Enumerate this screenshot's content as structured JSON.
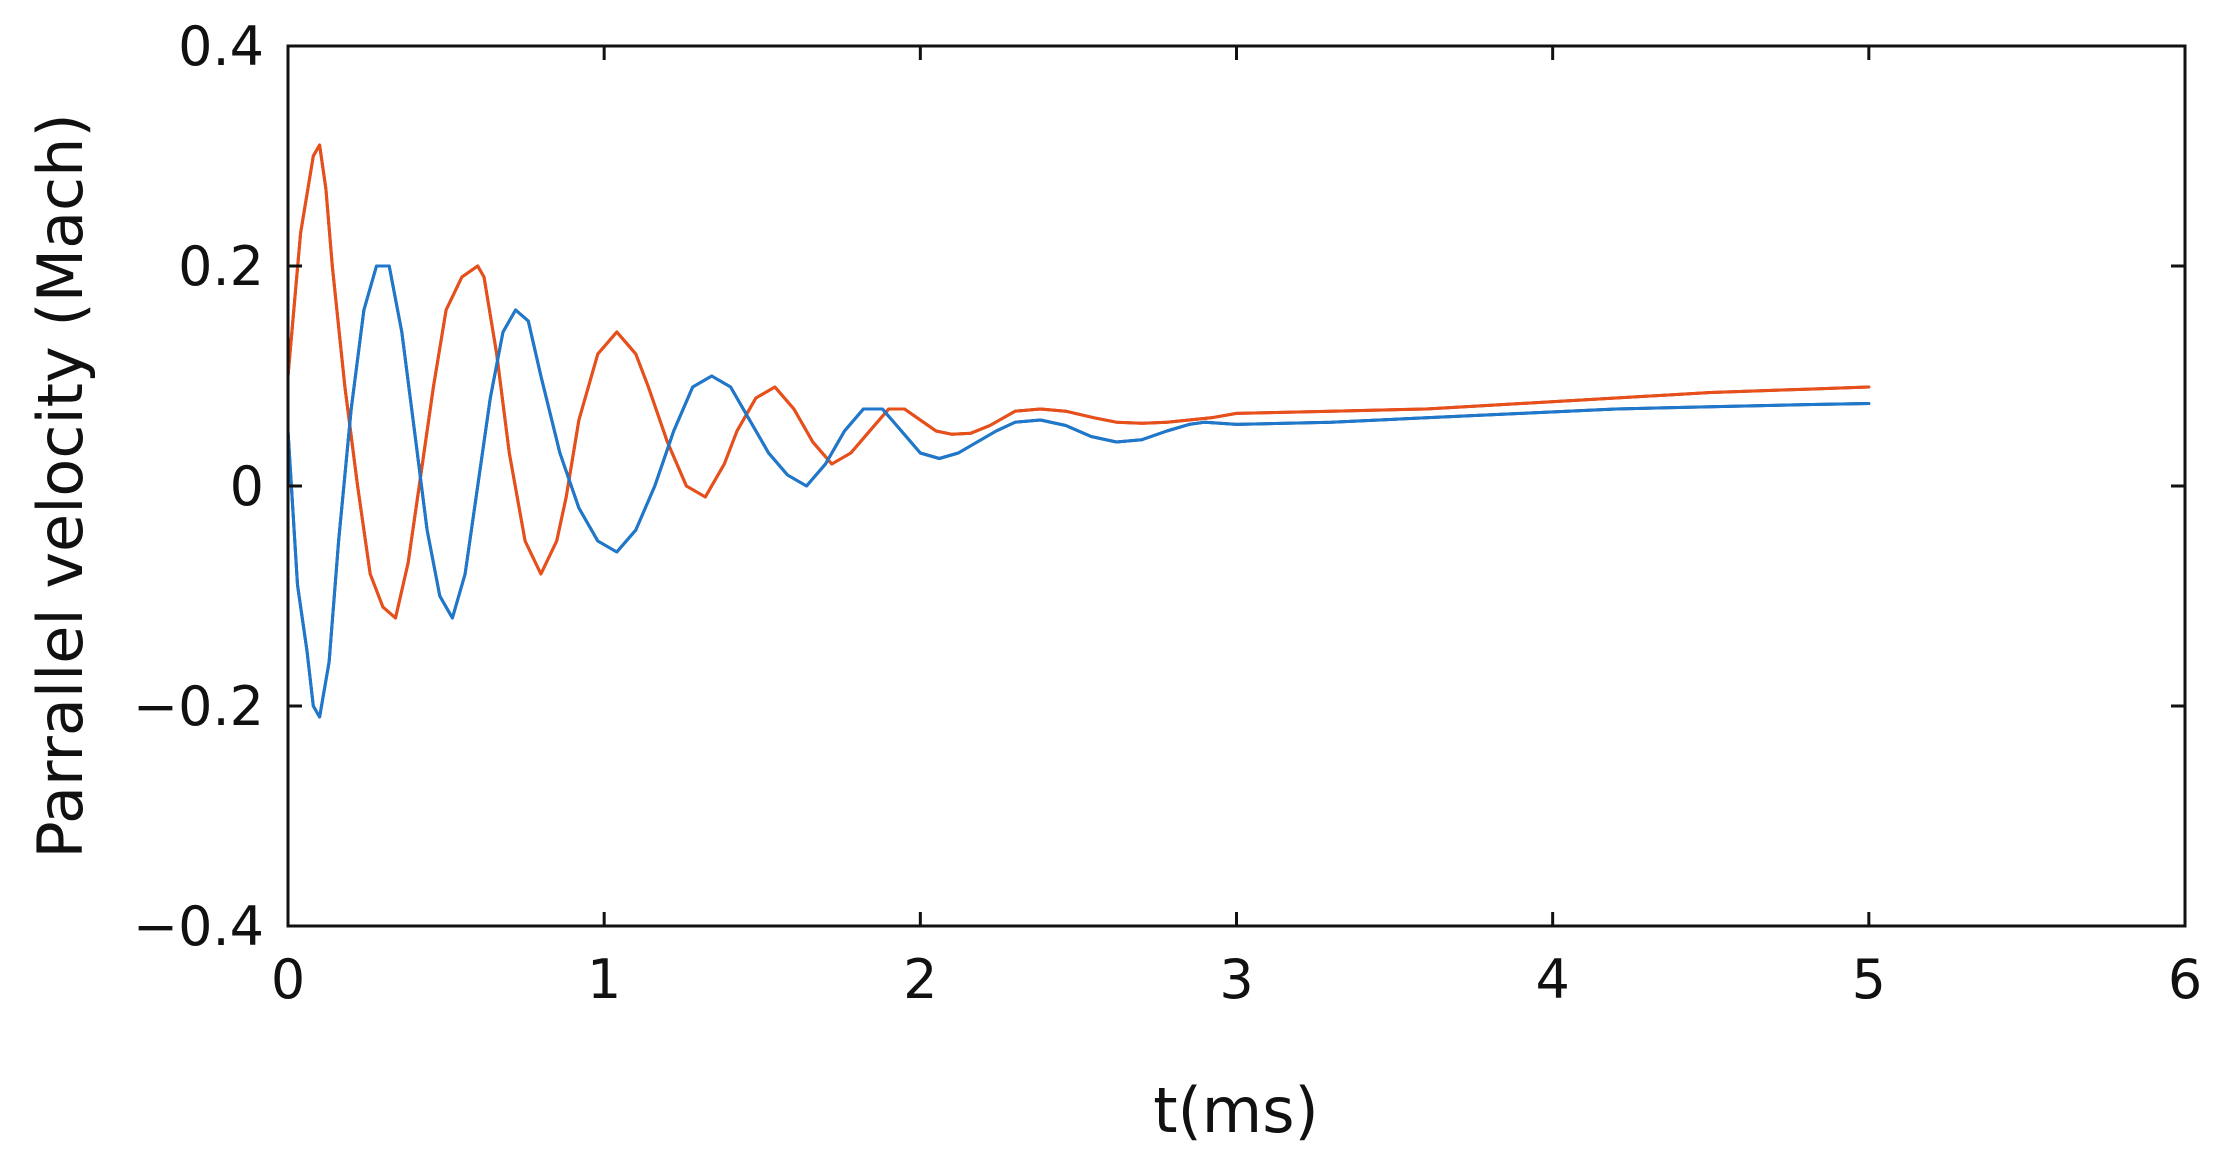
{
  "chart_data": {
    "type": "line",
    "title": "",
    "xlabel": "t(ms)",
    "ylabel": "Parrallel velocity (Mach)",
    "xlim": [
      0,
      6
    ],
    "ylim": [
      -0.4,
      0.4
    ],
    "xticks": [
      0,
      1,
      2,
      3,
      4,
      5,
      6
    ],
    "xtick_labels": [
      "0",
      "1",
      "2",
      "3",
      "4",
      "5",
      "6"
    ],
    "yticks": [
      -0.4,
      -0.2,
      0,
      0.2,
      0.4
    ],
    "ytick_labels": [
      "−0.4",
      "−0.2",
      "0",
      "0.2",
      "0.4"
    ],
    "grid": false,
    "legend": "none",
    "series": [
      {
        "color": "#e8501a",
        "outline": "#b01515",
        "x": [
          0,
          0.04,
          0.08,
          0.1,
          0.12,
          0.14,
          0.18,
          0.22,
          0.26,
          0.3,
          0.34,
          0.38,
          0.42,
          0.46,
          0.5,
          0.55,
          0.6,
          0.62,
          0.66,
          0.7,
          0.75,
          0.8,
          0.85,
          0.88,
          0.92,
          0.98,
          1.04,
          1.1,
          1.14,
          1.2,
          1.26,
          1.32,
          1.38,
          1.42,
          1.48,
          1.54,
          1.6,
          1.66,
          1.72,
          1.78,
          1.84,
          1.9,
          1.95,
          2.0,
          2.05,
          2.1,
          2.16,
          2.22,
          2.3,
          2.38,
          2.46,
          2.55,
          2.62,
          2.7,
          2.78,
          2.85,
          2.92,
          3.0,
          3.3,
          3.6,
          3.9,
          4.2,
          4.5,
          4.8,
          5.0
        ],
        "y": [
          0.1,
          0.23,
          0.3,
          0.31,
          0.27,
          0.2,
          0.09,
          0.0,
          -0.08,
          -0.11,
          -0.12,
          -0.07,
          0.01,
          0.09,
          0.16,
          0.19,
          0.2,
          0.19,
          0.12,
          0.03,
          -0.05,
          -0.08,
          -0.05,
          -0.01,
          0.06,
          0.12,
          0.14,
          0.12,
          0.09,
          0.04,
          0.0,
          -0.01,
          0.02,
          0.05,
          0.08,
          0.09,
          0.07,
          0.04,
          0.02,
          0.03,
          0.05,
          0.07,
          0.07,
          0.06,
          0.05,
          0.047,
          0.048,
          0.055,
          0.068,
          0.07,
          0.068,
          0.062,
          0.058,
          0.057,
          0.058,
          0.06,
          0.062,
          0.066,
          0.068,
          0.07,
          0.075,
          0.08,
          0.085,
          0.088,
          0.09
        ]
      },
      {
        "color": "#1e78cc",
        "outline": "#10265c",
        "x": [
          0,
          0.03,
          0.06,
          0.08,
          0.1,
          0.13,
          0.16,
          0.2,
          0.24,
          0.28,
          0.32,
          0.36,
          0.4,
          0.44,
          0.48,
          0.52,
          0.56,
          0.6,
          0.64,
          0.68,
          0.72,
          0.76,
          0.8,
          0.86,
          0.92,
          0.98,
          1.04,
          1.1,
          1.16,
          1.22,
          1.28,
          1.34,
          1.4,
          1.46,
          1.52,
          1.58,
          1.64,
          1.7,
          1.76,
          1.82,
          1.88,
          1.94,
          2.0,
          2.06,
          2.12,
          2.18,
          2.24,
          2.3,
          2.38,
          2.46,
          2.54,
          2.62,
          2.7,
          2.78,
          2.85,
          2.9,
          3.0,
          3.3,
          3.6,
          3.9,
          4.2,
          4.5,
          4.8,
          5.0
        ],
        "y": [
          0.05,
          -0.09,
          -0.15,
          -0.2,
          -0.21,
          -0.16,
          -0.05,
          0.07,
          0.16,
          0.2,
          0.2,
          0.14,
          0.05,
          -0.04,
          -0.1,
          -0.12,
          -0.08,
          0.0,
          0.08,
          0.14,
          0.16,
          0.15,
          0.1,
          0.03,
          -0.02,
          -0.05,
          -0.06,
          -0.04,
          0.0,
          0.05,
          0.09,
          0.1,
          0.09,
          0.06,
          0.03,
          0.01,
          0.0,
          0.02,
          0.05,
          0.07,
          0.07,
          0.05,
          0.03,
          0.025,
          0.03,
          0.04,
          0.05,
          0.058,
          0.06,
          0.055,
          0.045,
          0.04,
          0.042,
          0.05,
          0.056,
          0.058,
          0.056,
          0.058,
          0.062,
          0.066,
          0.07,
          0.072,
          0.074,
          0.075
        ]
      }
    ]
  }
}
